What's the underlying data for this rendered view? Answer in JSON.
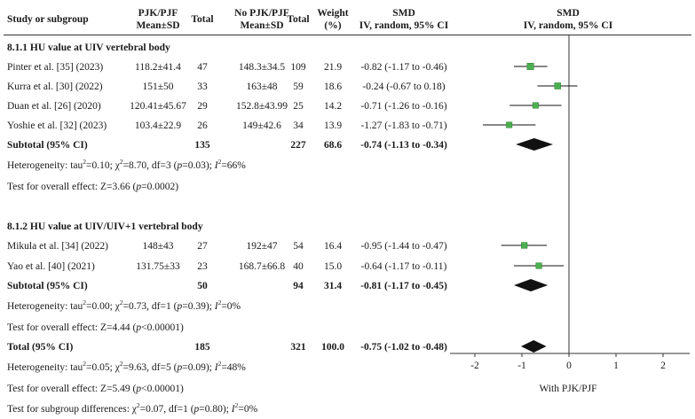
{
  "headers": {
    "study": "Study or subgroup",
    "pjk_1": "PJK/PJF",
    "pjk_2": "Mean±SD",
    "total_a": "Total",
    "nopjk_1": "No PJK/PJF",
    "nopjk_2": "Mean±SD",
    "total_b": "Total",
    "weight_1": "Weight",
    "weight_2": "(%)",
    "smd_1": "SMD",
    "smd_2": "IV, random, 95% CI",
    "plot_1": "SMD",
    "plot_2": "IV, random, 95% CI"
  },
  "groups": [
    {
      "title": "8.1.1 HU value at UIV vertebral body",
      "studies": [
        {
          "name": "Pinter et al. [35] (2023)",
          "pjk": "118.2±41.4",
          "n1": "47",
          "nopjk": "148.3±34.5",
          "n2": "109",
          "weight": "21.9",
          "smd_text": "-0.82 (-1.17 to -0.46)",
          "smd": -0.82,
          "lo": -1.17,
          "hi": -0.46
        },
        {
          "name": "Kurra et al. [30] (2022)",
          "pjk": "151±50",
          "n1": "33",
          "nopjk": "163±48",
          "n2": "59",
          "weight": "18.6",
          "smd_text": "-0.24 (-0.67 to 0.18)",
          "smd": -0.24,
          "lo": -0.67,
          "hi": 0.18
        },
        {
          "name": "Duan et al. [26] (2020)",
          "pjk": "120.41±45.67",
          "n1": "29",
          "nopjk": "152.8±43.99",
          "n2": "25",
          "weight": "14.2",
          "smd_text": "-0.71 (-1.26 to -0.16)",
          "smd": -0.71,
          "lo": -1.26,
          "hi": -0.16
        },
        {
          "name": "Yoshie et al. [32] (2023)",
          "pjk": "103.4±22.9",
          "n1": "26",
          "nopjk": "149±42.6",
          "n2": "34",
          "weight": "13.9",
          "smd_text": "-1.27 (-1.83 to -0.71)",
          "smd": -1.27,
          "lo": -1.83,
          "hi": -0.71
        }
      ],
      "subtotal": {
        "label": "Subtotal (95% CI)",
        "n1": "135",
        "n2": "227",
        "weight": "68.6",
        "smd_text": "-0.74 (-1.13 to -0.34)",
        "smd": -0.74,
        "lo": -1.13,
        "hi": -0.34
      },
      "heterogeneity": {
        "prefix": "Heterogeneity: tau",
        "sup1": "2",
        "mid1": "=0.10; χ",
        "sup2": "2",
        "mid2": "=8.70, df=3 (",
        "p": "p",
        "mid3": "=0.03); ",
        "i": "I",
        "sup3": "2",
        "end": "=66%"
      },
      "overall": {
        "prefix": "Test for overall effect: Z=3.66 (",
        "p": "p",
        "end": "=0.0002)"
      }
    },
    {
      "title": "8.1.2 HU value at UIV/UIV+1 vertebral body",
      "studies": [
        {
          "name": "Mikula et al. [34] (2022)",
          "pjk": "148±43",
          "n1": "27",
          "nopjk": "192±47",
          "n2": "54",
          "weight": "16.4",
          "smd_text": "-0.95 (-1.44 to -0.47)",
          "smd": -0.95,
          "lo": -1.44,
          "hi": -0.47
        },
        {
          "name": "Yao et al. [40] (2021)",
          "pjk": "131.75±33",
          "n1": "23",
          "nopjk": "168.7±66.8",
          "n2": "40",
          "weight": "15.0",
          "smd_text": "-0.64 (-1.17 to -0.11)",
          "smd": -0.64,
          "lo": -1.17,
          "hi": -0.11
        }
      ],
      "subtotal": {
        "label": "Subtotal (95% CI)",
        "n1": "50",
        "n2": "94",
        "weight": "31.4",
        "smd_text": "-0.81 (-1.17 to -0.45)",
        "smd": -0.81,
        "lo": -1.17,
        "hi": -0.45
      },
      "heterogeneity": {
        "prefix": "Heterogeneity: tau",
        "sup1": "2",
        "mid1": "=0.00; χ",
        "sup2": "2",
        "mid2": "=0.73, df=1 (",
        "p": "p",
        "mid3": "=0.39); ",
        "i": "I",
        "sup3": "2",
        "end": "=0%"
      },
      "overall": {
        "prefix": "Test for overall effect: Z=4.44 (",
        "p": "p",
        "end": "<0.00001)"
      }
    }
  ],
  "total": {
    "label": "Total (95% CI)",
    "n1": "185",
    "n2": "321",
    "weight": "100.0",
    "smd_text": "-0.75 (-1.02 to -0.48)",
    "smd": -0.75,
    "lo": -1.02,
    "hi": -0.48,
    "heterogeneity": {
      "prefix": "Heterogeneity: tau",
      "sup1": "2",
      "mid1": "=0.05; χ",
      "sup2": "2",
      "mid2": "=9.63, df=5 (",
      "p": "p",
      "mid3": "=0.09); ",
      "i": "I",
      "sup3": "2",
      "end": "=48%"
    },
    "overall": {
      "prefix": "Test for overall effect: Z=5.49 (",
      "p": "p",
      "end": "<0.00001)"
    },
    "subgroup": {
      "prefix": "Test for subgroup differences: χ",
      "sup1": "2",
      "mid1": "=0.07, df=1 (",
      "p": "p",
      "mid2": "=0.80); ",
      "i": "I",
      "sup2": "2",
      "end": "=0%"
    }
  },
  "chart_data": {
    "type": "forest",
    "xlim": [
      -2,
      2
    ],
    "ticks": [
      "-2",
      "-1",
      "0",
      "1",
      "2"
    ],
    "tick_values": [
      -2,
      -1,
      0,
      1,
      2
    ],
    "xlabel": "With PJK/PJF",
    "colors": {
      "marker": "#4caf50",
      "diamond": "#111111",
      "line": "#111111"
    }
  }
}
